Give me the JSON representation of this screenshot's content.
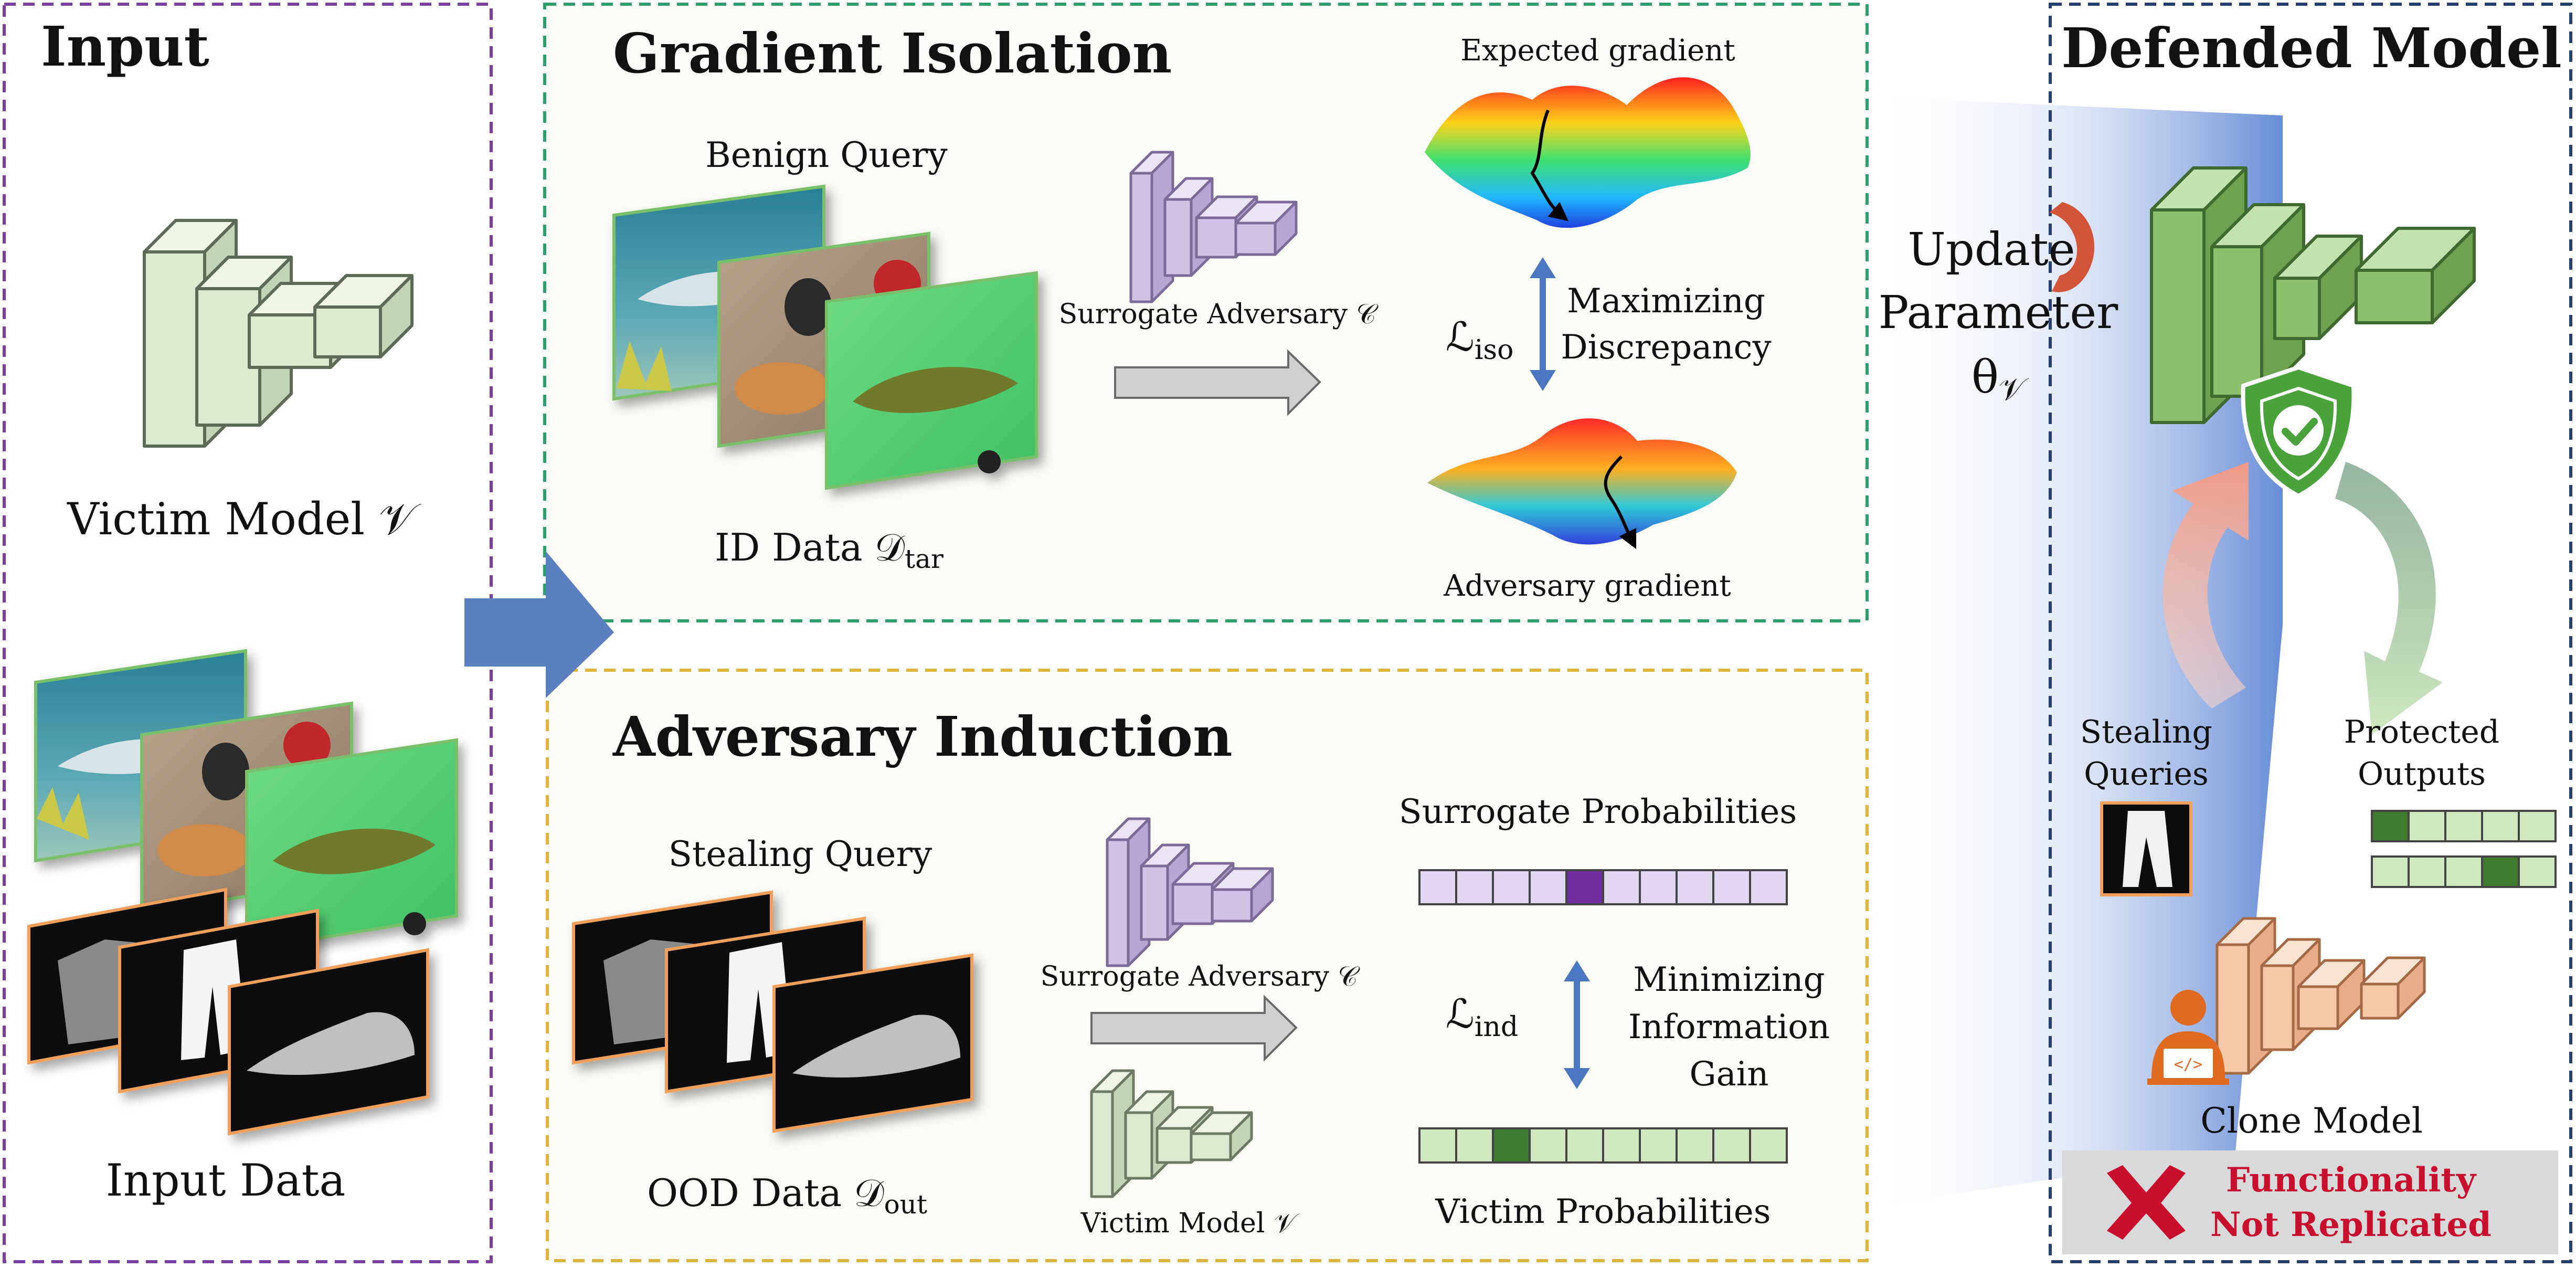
{
  "input_panel": {
    "title": "Input",
    "victim_model_label": "Victim Model 𝒱",
    "input_data_label": "Input Data"
  },
  "gradient_isolation": {
    "title": "Gradient Isolation",
    "benign_query_label": "Benign Query",
    "id_data_label": "ID Data 𝒟",
    "id_data_sub": "tar",
    "surrogate_label": "Surrogate Adversary 𝒞",
    "loss_label": "ℒ",
    "loss_sub": "iso",
    "maximizing_line1": "Maximizing",
    "maximizing_line2": "Discrepancy",
    "expected_gradient_label": "Expected gradient",
    "adversary_gradient_label": "Adversary gradient"
  },
  "adversary_induction": {
    "title": "Adversary Induction",
    "stealing_query_label": "Stealing Query",
    "ood_data_label": "OOD Data 𝒟",
    "ood_data_sub": "out",
    "surrogate_label": "Surrogate Adversary 𝒞",
    "victim_label": "Victim Model 𝒱",
    "surrogate_prob_label": "Surrogate Probabilities",
    "victim_prob_label": "Victim Probabilities",
    "loss_label": "ℒ",
    "loss_sub": "ind",
    "minimizing_line1": "Minimizing",
    "minimizing_line2": "Information",
    "minimizing_line3": "Gain"
  },
  "update": {
    "line1": "Update",
    "line2": "Parameter",
    "line3": "θ",
    "line3_sub": "𝒱"
  },
  "defended_panel": {
    "title": "Defended Model",
    "stealing_queries_line1": "Stealing",
    "stealing_queries_line2": "Queries",
    "protected_outputs_line1": "Protected",
    "protected_outputs_line2": "Outputs",
    "clone_model_label": "Clone Model",
    "fail_line1": "Functionality",
    "fail_line2": "Not Replicated"
  },
  "colors": {
    "input_border": "#7b3fa0",
    "isolation_border": "#2e9e6a",
    "induction_border": "#e0b43a",
    "defended_border": "#27406e",
    "victim_green": "#dde9cf",
    "defended_green": "#8cbf6a",
    "surrogate_purple": "#d2c2e6",
    "clone_orange": "#f4c8a8",
    "fail_red": "#c8102e",
    "arrow_blue": "#4a78c0"
  }
}
